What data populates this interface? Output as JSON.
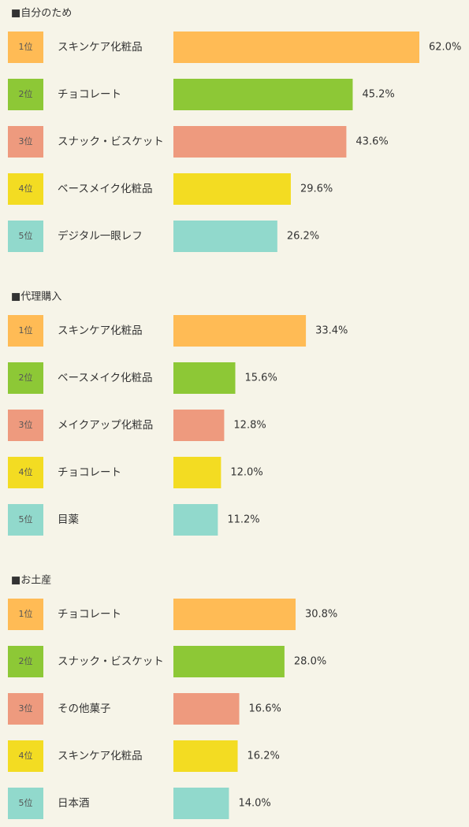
{
  "chart_data": [
    {
      "type": "hbar",
      "title": "■自分のため",
      "ranks": [
        "1位",
        "2位",
        "3位",
        "4位",
        "5位"
      ],
      "categories": [
        "スキンケア化粧品",
        "チョコレート",
        "スナック・ビスケット",
        "ベースメイク化粧品",
        "デジタル一眼レフ"
      ],
      "values": [
        62.0,
        45.2,
        43.6,
        29.6,
        26.2
      ],
      "value_labels": [
        "62.0%",
        "45.2%",
        "43.6%",
        "29.6%",
        "26.2%"
      ],
      "colors": [
        "#ffbb55",
        "#8dc836",
        "#ee9a7e",
        "#f3dc22",
        "#91d9cc"
      ]
    },
    {
      "type": "hbar",
      "title": "■代理購入",
      "ranks": [
        "1位",
        "2位",
        "3位",
        "4位",
        "5位"
      ],
      "categories": [
        "スキンケア化粧品",
        "ベースメイク化粧品",
        "メイクアップ化粧品",
        "チョコレート",
        "目薬"
      ],
      "values": [
        33.4,
        15.6,
        12.8,
        12.0,
        11.2
      ],
      "value_labels": [
        "33.4%",
        "15.6%",
        "12.8%",
        "12.0%",
        "11.2%"
      ],
      "colors": [
        "#ffbb55",
        "#8dc836",
        "#ee9a7e",
        "#f3dc22",
        "#91d9cc"
      ]
    },
    {
      "type": "hbar",
      "title": "■お土産",
      "ranks": [
        "1位",
        "2位",
        "3位",
        "4位",
        "5位"
      ],
      "categories": [
        "チョコレート",
        "スナック・ビスケット",
        "その他菓子",
        "スキンケア化粧品",
        "日本酒"
      ],
      "values": [
        30.8,
        28.0,
        16.6,
        16.2,
        14.0
      ],
      "value_labels": [
        "30.8%",
        "28.0%",
        "16.6%",
        "16.2%",
        "14.0%"
      ],
      "colors": [
        "#ffbb55",
        "#8dc836",
        "#ee9a7e",
        "#f3dc22",
        "#91d9cc"
      ]
    }
  ]
}
